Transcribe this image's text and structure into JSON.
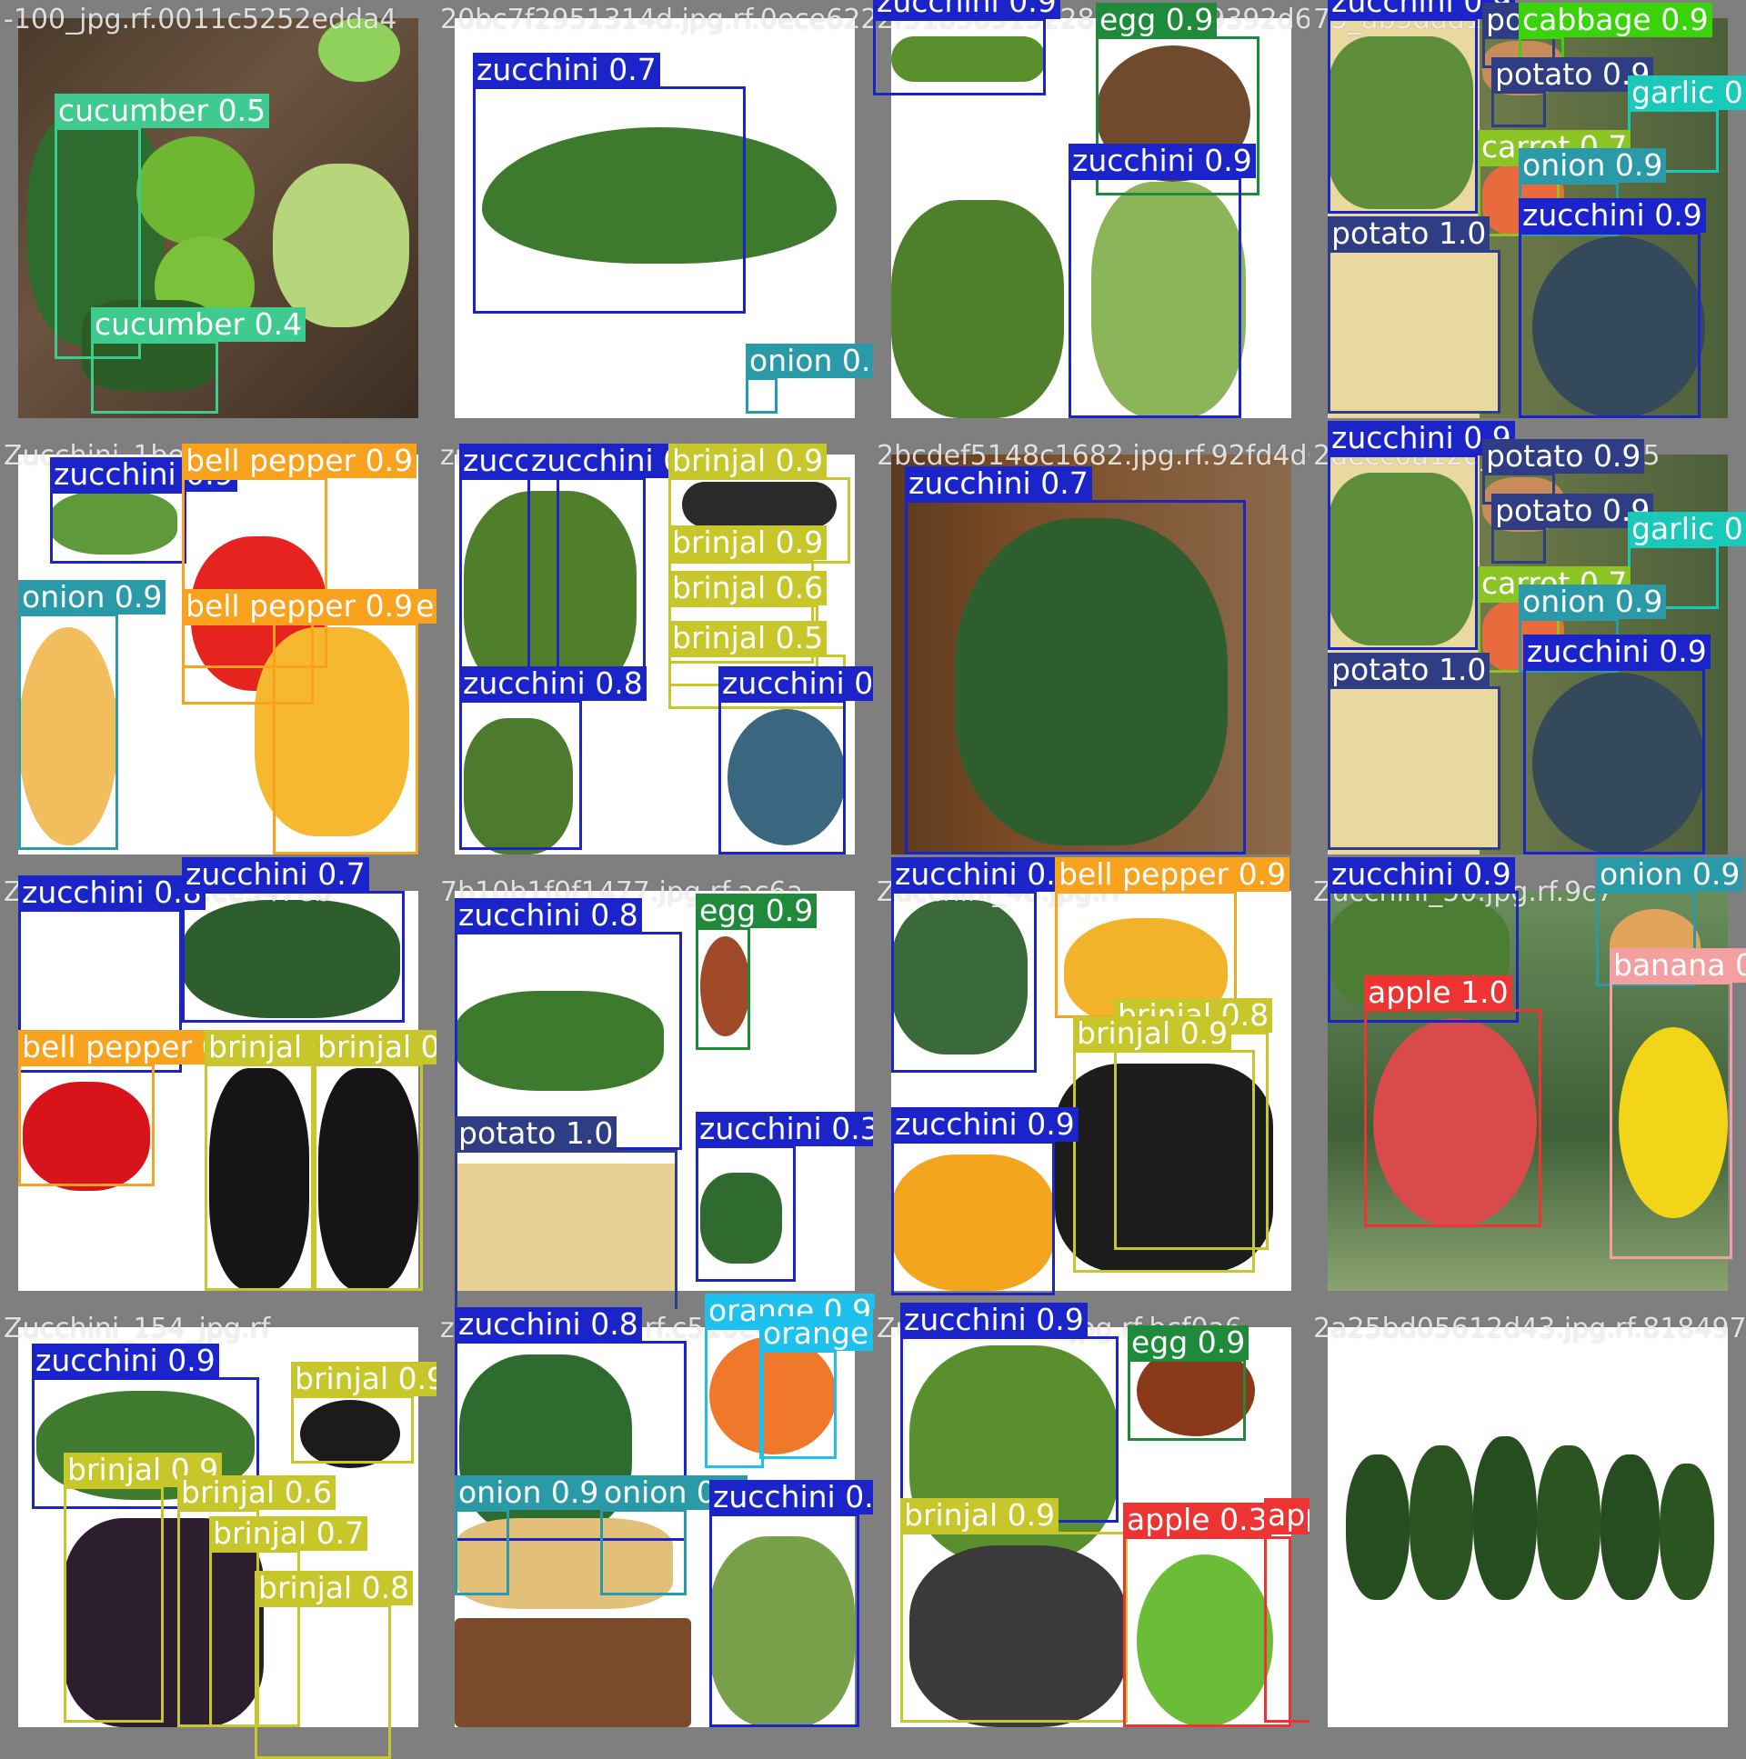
{
  "title": "",
  "class_colors": {
    "zucchini": "#1a24c8",
    "cucumber": "#3fcb8f",
    "onion": "#2a9aa8",
    "egg": "#1f8a3a",
    "potato": "#2f3d85",
    "cabbage": "#3ad30a",
    "garlic": "#19c9b9",
    "carrot": "#8ac524",
    "bell pepper": "#f8a21d",
    "brinjal": "#c7c72c",
    "apple": "#ee3333",
    "banana": "#f5a0a0",
    "orange": "#1ec0ee"
  },
  "tiles": [
    {
      "filename": "-100_jpg.rf.0011c5252edda4",
      "scene": "green smoothie with spinach, apples and limes",
      "bg": "wood",
      "detections": [
        {
          "class": "cucumber",
          "score": "0.5"
        },
        {
          "class": "cucumber",
          "score": "0.4"
        }
      ]
    },
    {
      "filename": "20bc7f2951314d.jpg.rf.0ece622",
      "scene": "single zucchini on white",
      "bg": "white",
      "detections": [
        {
          "class": "zucchini",
          "score": "0.7"
        },
        {
          "class": "onion",
          "score": "0.5"
        }
      ]
    },
    {
      "filename": "2f51b36915228.jpg.rf.af9392d6",
      "scene": "zucchini and egg collage",
      "bg": "white",
      "detections": [
        {
          "class": "zucchini",
          "score": "0.9"
        },
        {
          "class": "egg",
          "score": "0.9"
        },
        {
          "class": "zucchini",
          "score": "0.9"
        }
      ]
    },
    {
      "filename": "75_ab5ddd125_9d98",
      "scene": "potato, carrot, garlic and zucchini collage",
      "bg": "mixed",
      "detections": [
        {
          "class": "zucchini",
          "score": "0.9"
        },
        {
          "class": "potato",
          "score": "0.9"
        },
        {
          "class": "cabbage",
          "score": "0.9"
        },
        {
          "class": "potato",
          "score": "0.9"
        },
        {
          "class": "garlic",
          "score": "0.9"
        },
        {
          "class": "carrot",
          "score": "0.7"
        },
        {
          "class": "onion",
          "score": "0.9"
        },
        {
          "class": "potato",
          "score": "1.0"
        },
        {
          "class": "zucchini",
          "score": "0.9"
        }
      ]
    },
    {
      "filename": "Zucchini_1bell pepper.f1f",
      "scene": "zucchini, onion and bell peppers",
      "bg": "white",
      "detections": [
        {
          "class": "zucchini",
          "score": "0.9"
        },
        {
          "class": "bell pepper",
          "score": "0.9"
        },
        {
          "class": "onion",
          "score": "0.9"
        },
        {
          "class": "bell pepper",
          "score": "0.9"
        },
        {
          "class": "bell pepper",
          "score": "0.9"
        }
      ]
    },
    {
      "filename": "zucchini_brinjal.0dc",
      "scene": "zucchini and brinjal collage",
      "bg": "white",
      "detections": [
        {
          "class": "zucchini",
          "score": "0.6"
        },
        {
          "class": "zucchini",
          "score": "0.6"
        },
        {
          "class": "brinjal",
          "score": "0.9"
        },
        {
          "class": "brinjal",
          "score": "0.9"
        },
        {
          "class": "brinjal",
          "score": "0.6"
        },
        {
          "class": "brinjal",
          "score": "0.5"
        },
        {
          "class": "zucchini",
          "score": "0.8"
        },
        {
          "class": "zucchini",
          "score": "0.8"
        }
      ]
    },
    {
      "filename": "2bcdef5148c1682.jpg.rf.92fd4d62",
      "scene": "single zucchini on brown wood",
      "bg": "brown",
      "detections": [
        {
          "class": "zucchini",
          "score": "0.7"
        }
      ]
    },
    {
      "filename": "2decc0a12d_potato.ed95",
      "scene": "potato, carrot, garlic and zucchini collage",
      "bg": "mixed",
      "detections": [
        {
          "class": "zucchini",
          "score": "0.9"
        },
        {
          "class": "potato",
          "score": "0.9"
        },
        {
          "class": "potato",
          "score": "0.9"
        },
        {
          "class": "garlic",
          "score": "0.9"
        },
        {
          "class": "carrot",
          "score": "0.7"
        },
        {
          "class": "onion",
          "score": "0.9"
        },
        {
          "class": "potato",
          "score": "1.0"
        },
        {
          "class": "zucchini",
          "score": "0.9"
        }
      ]
    },
    {
      "filename": "Zucchini_jpg.rf.ee547eb",
      "scene": "zucchini, bell pepper and brinjal",
      "bg": "white",
      "detections": [
        {
          "class": "zucchini",
          "score": "0.8"
        },
        {
          "class": "zucchini",
          "score": "0.7"
        },
        {
          "class": "bell pepper",
          "score": "0.9"
        },
        {
          "class": "brinjal",
          "score": "0.9"
        },
        {
          "class": "brinjal",
          "score": "0.9"
        }
      ]
    },
    {
      "filename": "7b10b1f0f1477.jpg.rf.ac6a",
      "scene": "zucchini, egg and potato collage",
      "bg": "white",
      "detections": [
        {
          "class": "zucchini",
          "score": "0.8"
        },
        {
          "class": "egg",
          "score": "0.9"
        },
        {
          "class": "potato",
          "score": "1.0"
        },
        {
          "class": "zucchini",
          "score": "0.3"
        }
      ]
    },
    {
      "filename": "Zucchini_48.jpg.rf",
      "scene": "zucchini, bell peppers and brinjal",
      "bg": "white",
      "detections": [
        {
          "class": "zucchini",
          "score": "0.9"
        },
        {
          "class": "bell pepper",
          "score": "0.9"
        },
        {
          "class": "brinjal",
          "score": "0.8"
        },
        {
          "class": "brinjal",
          "score": "0.9"
        },
        {
          "class": "zucchini",
          "score": "0.9"
        }
      ]
    },
    {
      "filename": "Zucchini_50.jpg.rf.9c7",
      "scene": "zucchini, onion, apple and banana collage",
      "bg": "orchard",
      "detections": [
        {
          "class": "zucchini",
          "score": "0.9"
        },
        {
          "class": "onion",
          "score": "0.9"
        },
        {
          "class": "apple",
          "score": "1.0"
        },
        {
          "class": "banana",
          "score": "0"
        }
      ]
    },
    {
      "filename": "Zucchini_154_jpg.rf",
      "scene": "zucchini and brinjals",
      "bg": "white",
      "detections": [
        {
          "class": "zucchini",
          "score": "0.9"
        },
        {
          "class": "brinjal",
          "score": "0.9"
        },
        {
          "class": "brinjal",
          "score": "0.9"
        },
        {
          "class": "brinjal",
          "score": "0.6"
        },
        {
          "class": "brinjal",
          "score": "0.7"
        },
        {
          "class": "brinjal",
          "score": "0.8"
        }
      ]
    },
    {
      "filename": "zucc_8250.jpg.rf.c510e4d",
      "scene": "zucchini, onions and oranges",
      "bg": "white",
      "detections": [
        {
          "class": "zucchini",
          "score": "0.8"
        },
        {
          "class": "orange",
          "score": "0.9"
        },
        {
          "class": "orange",
          "score": "0.9"
        },
        {
          "class": "onion",
          "score": "0.9"
        },
        {
          "class": "onion",
          "score": "0.9"
        },
        {
          "class": "zucchini",
          "score": "0.9"
        }
      ]
    },
    {
      "filename": "Zucchini0067.jpg.rf.bcf0a6",
      "scene": "zucchini, egg, brinjal and apple",
      "bg": "white",
      "detections": [
        {
          "class": "zucchini",
          "score": "0.9"
        },
        {
          "class": "egg",
          "score": "0.9"
        },
        {
          "class": "brinjal",
          "score": "0.9"
        },
        {
          "class": "apple",
          "score": "0.3"
        },
        {
          "class": "apple",
          "score": "0.3"
        }
      ]
    },
    {
      "filename": "2a25bd05612d43.jpg.rf.81849707",
      "scene": "row of six zucchinis on white cloth",
      "bg": "white",
      "detections": []
    }
  ]
}
